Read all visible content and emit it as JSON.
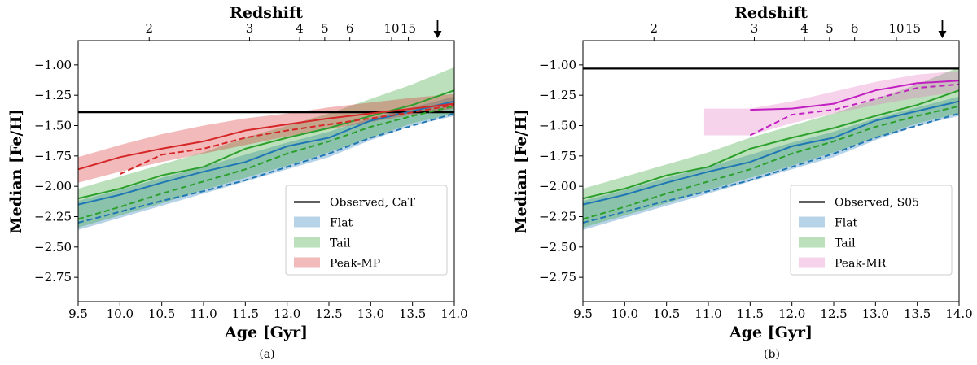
{
  "chart_data": [
    {
      "type": "line",
      "panel_label": "(a)",
      "xlabel": "Age [Gyr]",
      "ylabel": "Median [Fe/H]",
      "top_axis_label": "Redshift",
      "xlim": [
        9.5,
        14.0
      ],
      "ylim": [
        -2.95,
        -0.8
      ],
      "x_ticks": [
        9.5,
        10.0,
        10.5,
        11.0,
        11.5,
        12.0,
        12.5,
        13.0,
        13.5,
        14.0
      ],
      "x_tick_labels": [
        "9.5",
        "10.0",
        "10.5",
        "11.0",
        "11.5",
        "12.0",
        "12.5",
        "13.0",
        "13.5",
        "14.0"
      ],
      "y_ticks": [
        -1.0,
        -1.25,
        -1.5,
        -1.75,
        -2.0,
        -2.25,
        -2.5,
        -2.75
      ],
      "y_tick_labels": [
        "−1.00",
        "−1.25",
        "−1.50",
        "−1.75",
        "−2.00",
        "−2.25",
        "−2.50",
        "−2.75"
      ],
      "redshift_ticks": [
        {
          "label": "2",
          "age": 10.35
        },
        {
          "label": "3",
          "age": 11.55
        },
        {
          "label": "4",
          "age": 12.15
        },
        {
          "label": "5",
          "age": 12.45
        },
        {
          "label": "6",
          "age": 12.75
        },
        {
          "label": "10",
          "age": 13.25
        },
        {
          "label": "15",
          "age": 13.45
        }
      ],
      "arrow_age": 13.8,
      "observed": {
        "name": "Observed, CaT",
        "value": -1.39,
        "color": "#000000"
      },
      "legend": [
        {
          "name": "Observed, CaT",
          "kind": "line",
          "color": "#000000"
        },
        {
          "name": "Flat",
          "kind": "band",
          "color": "#1f77b4"
        },
        {
          "name": "Tail",
          "kind": "band",
          "color": "#2ca02c"
        },
        {
          "name": "Peak-MP",
          "kind": "band",
          "color": "#d62728"
        }
      ],
      "bands": [
        {
          "name": "Flat",
          "color": "#1f77b4",
          "x": [
            9.5,
            10.0,
            10.5,
            11.0,
            11.5,
            12.0,
            12.5,
            13.0,
            13.5,
            14.0
          ],
          "lower": [
            -2.36,
            -2.26,
            -2.16,
            -2.06,
            -1.96,
            -1.86,
            -1.76,
            -1.62,
            -1.5,
            -1.42
          ],
          "upper": [
            -2.12,
            -2.03,
            -1.93,
            -1.84,
            -1.74,
            -1.64,
            -1.55,
            -1.44,
            -1.35,
            -1.26
          ]
        },
        {
          "name": "Tail",
          "color": "#2ca02c",
          "x": [
            9.5,
            10.0,
            10.5,
            11.0,
            11.5,
            12.0,
            12.5,
            13.0,
            13.5,
            14.0
          ],
          "lower": [
            -2.34,
            -2.24,
            -2.14,
            -2.03,
            -1.93,
            -1.83,
            -1.72,
            -1.6,
            -1.48,
            -1.4
          ],
          "upper": [
            -2.02,
            -1.92,
            -1.82,
            -1.72,
            -1.6,
            -1.5,
            -1.4,
            -1.28,
            -1.16,
            -1.02
          ]
        },
        {
          "name": "Peak-MP",
          "color": "#d62728",
          "x": [
            9.5,
            10.0,
            10.5,
            11.0,
            11.5,
            12.0,
            12.5,
            13.0,
            13.5,
            14.0
          ],
          "lower": [
            -1.97,
            -1.88,
            -1.8,
            -1.73,
            -1.66,
            -1.59,
            -1.53,
            -1.47,
            -1.41,
            -1.36
          ],
          "upper": [
            -1.76,
            -1.66,
            -1.57,
            -1.5,
            -1.44,
            -1.4,
            -1.35,
            -1.31,
            -1.27,
            -1.24
          ]
        }
      ],
      "series": [
        {
          "name": "Flat median",
          "color": "#1f77b4",
          "dash": false,
          "x": [
            9.5,
            10.0,
            10.5,
            11.0,
            11.5,
            12.0,
            12.5,
            13.0,
            13.5,
            14.0
          ],
          "y": [
            -2.15,
            -2.07,
            -1.97,
            -1.88,
            -1.8,
            -1.67,
            -1.6,
            -1.46,
            -1.38,
            -1.3
          ]
        },
        {
          "name": "Flat dashed",
          "color": "#1f77b4",
          "dash": true,
          "x": [
            9.5,
            10.0,
            10.5,
            11.0,
            11.5,
            12.0,
            12.5,
            13.0,
            13.5,
            14.0
          ],
          "y": [
            -2.3,
            -2.21,
            -2.12,
            -2.04,
            -1.95,
            -1.84,
            -1.73,
            -1.6,
            -1.5,
            -1.4
          ]
        },
        {
          "name": "Tail median",
          "color": "#2ca02c",
          "dash": false,
          "x": [
            9.5,
            10.0,
            10.5,
            11.0,
            11.5,
            12.0,
            12.5,
            13.0,
            13.5,
            14.0
          ],
          "y": [
            -2.1,
            -2.02,
            -1.91,
            -1.84,
            -1.69,
            -1.6,
            -1.52,
            -1.42,
            -1.33,
            -1.21
          ]
        },
        {
          "name": "Tail dashed",
          "color": "#2ca02c",
          "dash": true,
          "x": [
            9.5,
            10.0,
            10.5,
            11.0,
            11.5,
            12.0,
            12.5,
            13.0,
            13.5,
            14.0
          ],
          "y": [
            -2.27,
            -2.17,
            -2.06,
            -1.96,
            -1.86,
            -1.73,
            -1.63,
            -1.51,
            -1.42,
            -1.34
          ]
        },
        {
          "name": "Peak-MP median",
          "color": "#d62728",
          "dash": false,
          "x": [
            9.5,
            10.0,
            10.5,
            11.0,
            11.5,
            12.0,
            12.5,
            13.0,
            13.5,
            14.0
          ],
          "y": [
            -1.86,
            -1.76,
            -1.69,
            -1.63,
            -1.54,
            -1.49,
            -1.44,
            -1.4,
            -1.36,
            -1.32
          ]
        },
        {
          "name": "Peak-MP dashed",
          "color": "#d62728",
          "dash": true,
          "x": [
            10.0,
            10.5,
            11.0,
            11.5,
            12.0,
            12.5,
            13.0,
            13.5,
            14.0
          ],
          "y": [
            -1.9,
            -1.74,
            -1.69,
            -1.6,
            -1.54,
            -1.49,
            -1.44,
            -1.39,
            -1.33
          ]
        }
      ]
    },
    {
      "type": "line",
      "panel_label": "(b)",
      "xlabel": "Age [Gyr]",
      "ylabel": "Median [Fe/H]",
      "top_axis_label": "Redshift",
      "xlim": [
        9.5,
        14.0
      ],
      "ylim": [
        -2.95,
        -0.8
      ],
      "x_ticks": [
        9.5,
        10.0,
        10.5,
        11.0,
        11.5,
        12.0,
        12.5,
        13.0,
        13.5,
        14.0
      ],
      "x_tick_labels": [
        "9.5",
        "10.0",
        "10.5",
        "11.0",
        "11.5",
        "12.0",
        "12.5",
        "13.0",
        "13.5",
        "14.0"
      ],
      "y_ticks": [
        -1.0,
        -1.25,
        -1.5,
        -1.75,
        -2.0,
        -2.25,
        -2.5,
        -2.75
      ],
      "y_tick_labels": [
        "−1.00",
        "−1.25",
        "−1.50",
        "−1.75",
        "−2.00",
        "−2.25",
        "−2.50",
        "−2.75"
      ],
      "redshift_ticks": [
        {
          "label": "2",
          "age": 10.35
        },
        {
          "label": "3",
          "age": 11.55
        },
        {
          "label": "4",
          "age": 12.15
        },
        {
          "label": "5",
          "age": 12.45
        },
        {
          "label": "6",
          "age": 12.75
        },
        {
          "label": "10",
          "age": 13.25
        },
        {
          "label": "15",
          "age": 13.45
        }
      ],
      "arrow_age": 13.8,
      "observed": {
        "name": "Observed, S05",
        "value": -1.03,
        "color": "#000000"
      },
      "legend": [
        {
          "name": "Observed, S05",
          "kind": "line",
          "color": "#000000"
        },
        {
          "name": "Flat",
          "kind": "band",
          "color": "#1f77b4"
        },
        {
          "name": "Tail",
          "kind": "band",
          "color": "#2ca02c"
        },
        {
          "name": "Peak-MR",
          "kind": "band",
          "color": "#e377c2"
        }
      ],
      "bands": [
        {
          "name": "Flat",
          "color": "#1f77b4",
          "x": [
            9.5,
            10.0,
            10.5,
            11.0,
            11.5,
            12.0,
            12.5,
            13.0,
            13.5,
            14.0
          ],
          "lower": [
            -2.36,
            -2.26,
            -2.16,
            -2.06,
            -1.96,
            -1.86,
            -1.76,
            -1.62,
            -1.5,
            -1.42
          ],
          "upper": [
            -2.12,
            -2.03,
            -1.93,
            -1.84,
            -1.74,
            -1.64,
            -1.55,
            -1.44,
            -1.35,
            -1.26
          ]
        },
        {
          "name": "Tail",
          "color": "#2ca02c",
          "x": [
            9.5,
            10.0,
            10.5,
            11.0,
            11.5,
            12.0,
            12.5,
            13.0,
            13.5,
            14.0
          ],
          "lower": [
            -2.34,
            -2.24,
            -2.14,
            -2.03,
            -1.93,
            -1.83,
            -1.72,
            -1.6,
            -1.48,
            -1.4
          ],
          "upper": [
            -2.02,
            -1.92,
            -1.82,
            -1.72,
            -1.6,
            -1.5,
            -1.4,
            -1.28,
            -1.16,
            -1.02
          ]
        },
        {
          "name": "Peak-MR",
          "color": "#e377c2",
          "x": [
            10.95,
            11.5,
            12.0,
            12.5,
            13.0,
            13.5,
            14.0
          ],
          "lower": [
            -1.58,
            -1.58,
            -1.48,
            -1.4,
            -1.33,
            -1.27,
            -1.22
          ],
          "upper": [
            -1.36,
            -1.36,
            -1.3,
            -1.22,
            -1.14,
            -1.08,
            -1.05
          ]
        }
      ],
      "series": [
        {
          "name": "Flat median",
          "color": "#1f77b4",
          "dash": false,
          "x": [
            9.5,
            10.0,
            10.5,
            11.0,
            11.5,
            12.0,
            12.5,
            13.0,
            13.5,
            14.0
          ],
          "y": [
            -2.15,
            -2.07,
            -1.97,
            -1.88,
            -1.8,
            -1.67,
            -1.6,
            -1.46,
            -1.38,
            -1.3
          ]
        },
        {
          "name": "Flat dashed",
          "color": "#1f77b4",
          "dash": true,
          "x": [
            9.5,
            10.0,
            10.5,
            11.0,
            11.5,
            12.0,
            12.5,
            13.0,
            13.5,
            14.0
          ],
          "y": [
            -2.3,
            -2.21,
            -2.12,
            -2.04,
            -1.95,
            -1.84,
            -1.73,
            -1.6,
            -1.5,
            -1.4
          ]
        },
        {
          "name": "Tail median",
          "color": "#2ca02c",
          "dash": false,
          "x": [
            9.5,
            10.0,
            10.5,
            11.0,
            11.5,
            12.0,
            12.5,
            13.0,
            13.5,
            14.0
          ],
          "y": [
            -2.1,
            -2.02,
            -1.91,
            -1.84,
            -1.69,
            -1.6,
            -1.52,
            -1.42,
            -1.33,
            -1.21
          ]
        },
        {
          "name": "Tail dashed",
          "color": "#2ca02c",
          "dash": true,
          "x": [
            9.5,
            10.0,
            10.5,
            11.0,
            11.5,
            12.0,
            12.5,
            13.0,
            13.5,
            14.0
          ],
          "y": [
            -2.27,
            -2.17,
            -2.06,
            -1.96,
            -1.86,
            -1.73,
            -1.63,
            -1.51,
            -1.42,
            -1.34
          ]
        },
        {
          "name": "Peak-MR median",
          "color": "#c020c0",
          "dash": false,
          "x": [
            11.5,
            12.0,
            12.5,
            13.0,
            13.5,
            14.0
          ],
          "y": [
            -1.37,
            -1.36,
            -1.32,
            -1.21,
            -1.15,
            -1.13
          ]
        },
        {
          "name": "Peak-MR dashed",
          "color": "#c020c0",
          "dash": true,
          "x": [
            11.5,
            12.0,
            12.5,
            13.0,
            13.5,
            14.0
          ],
          "y": [
            -1.58,
            -1.41,
            -1.37,
            -1.28,
            -1.19,
            -1.16
          ]
        }
      ]
    }
  ]
}
